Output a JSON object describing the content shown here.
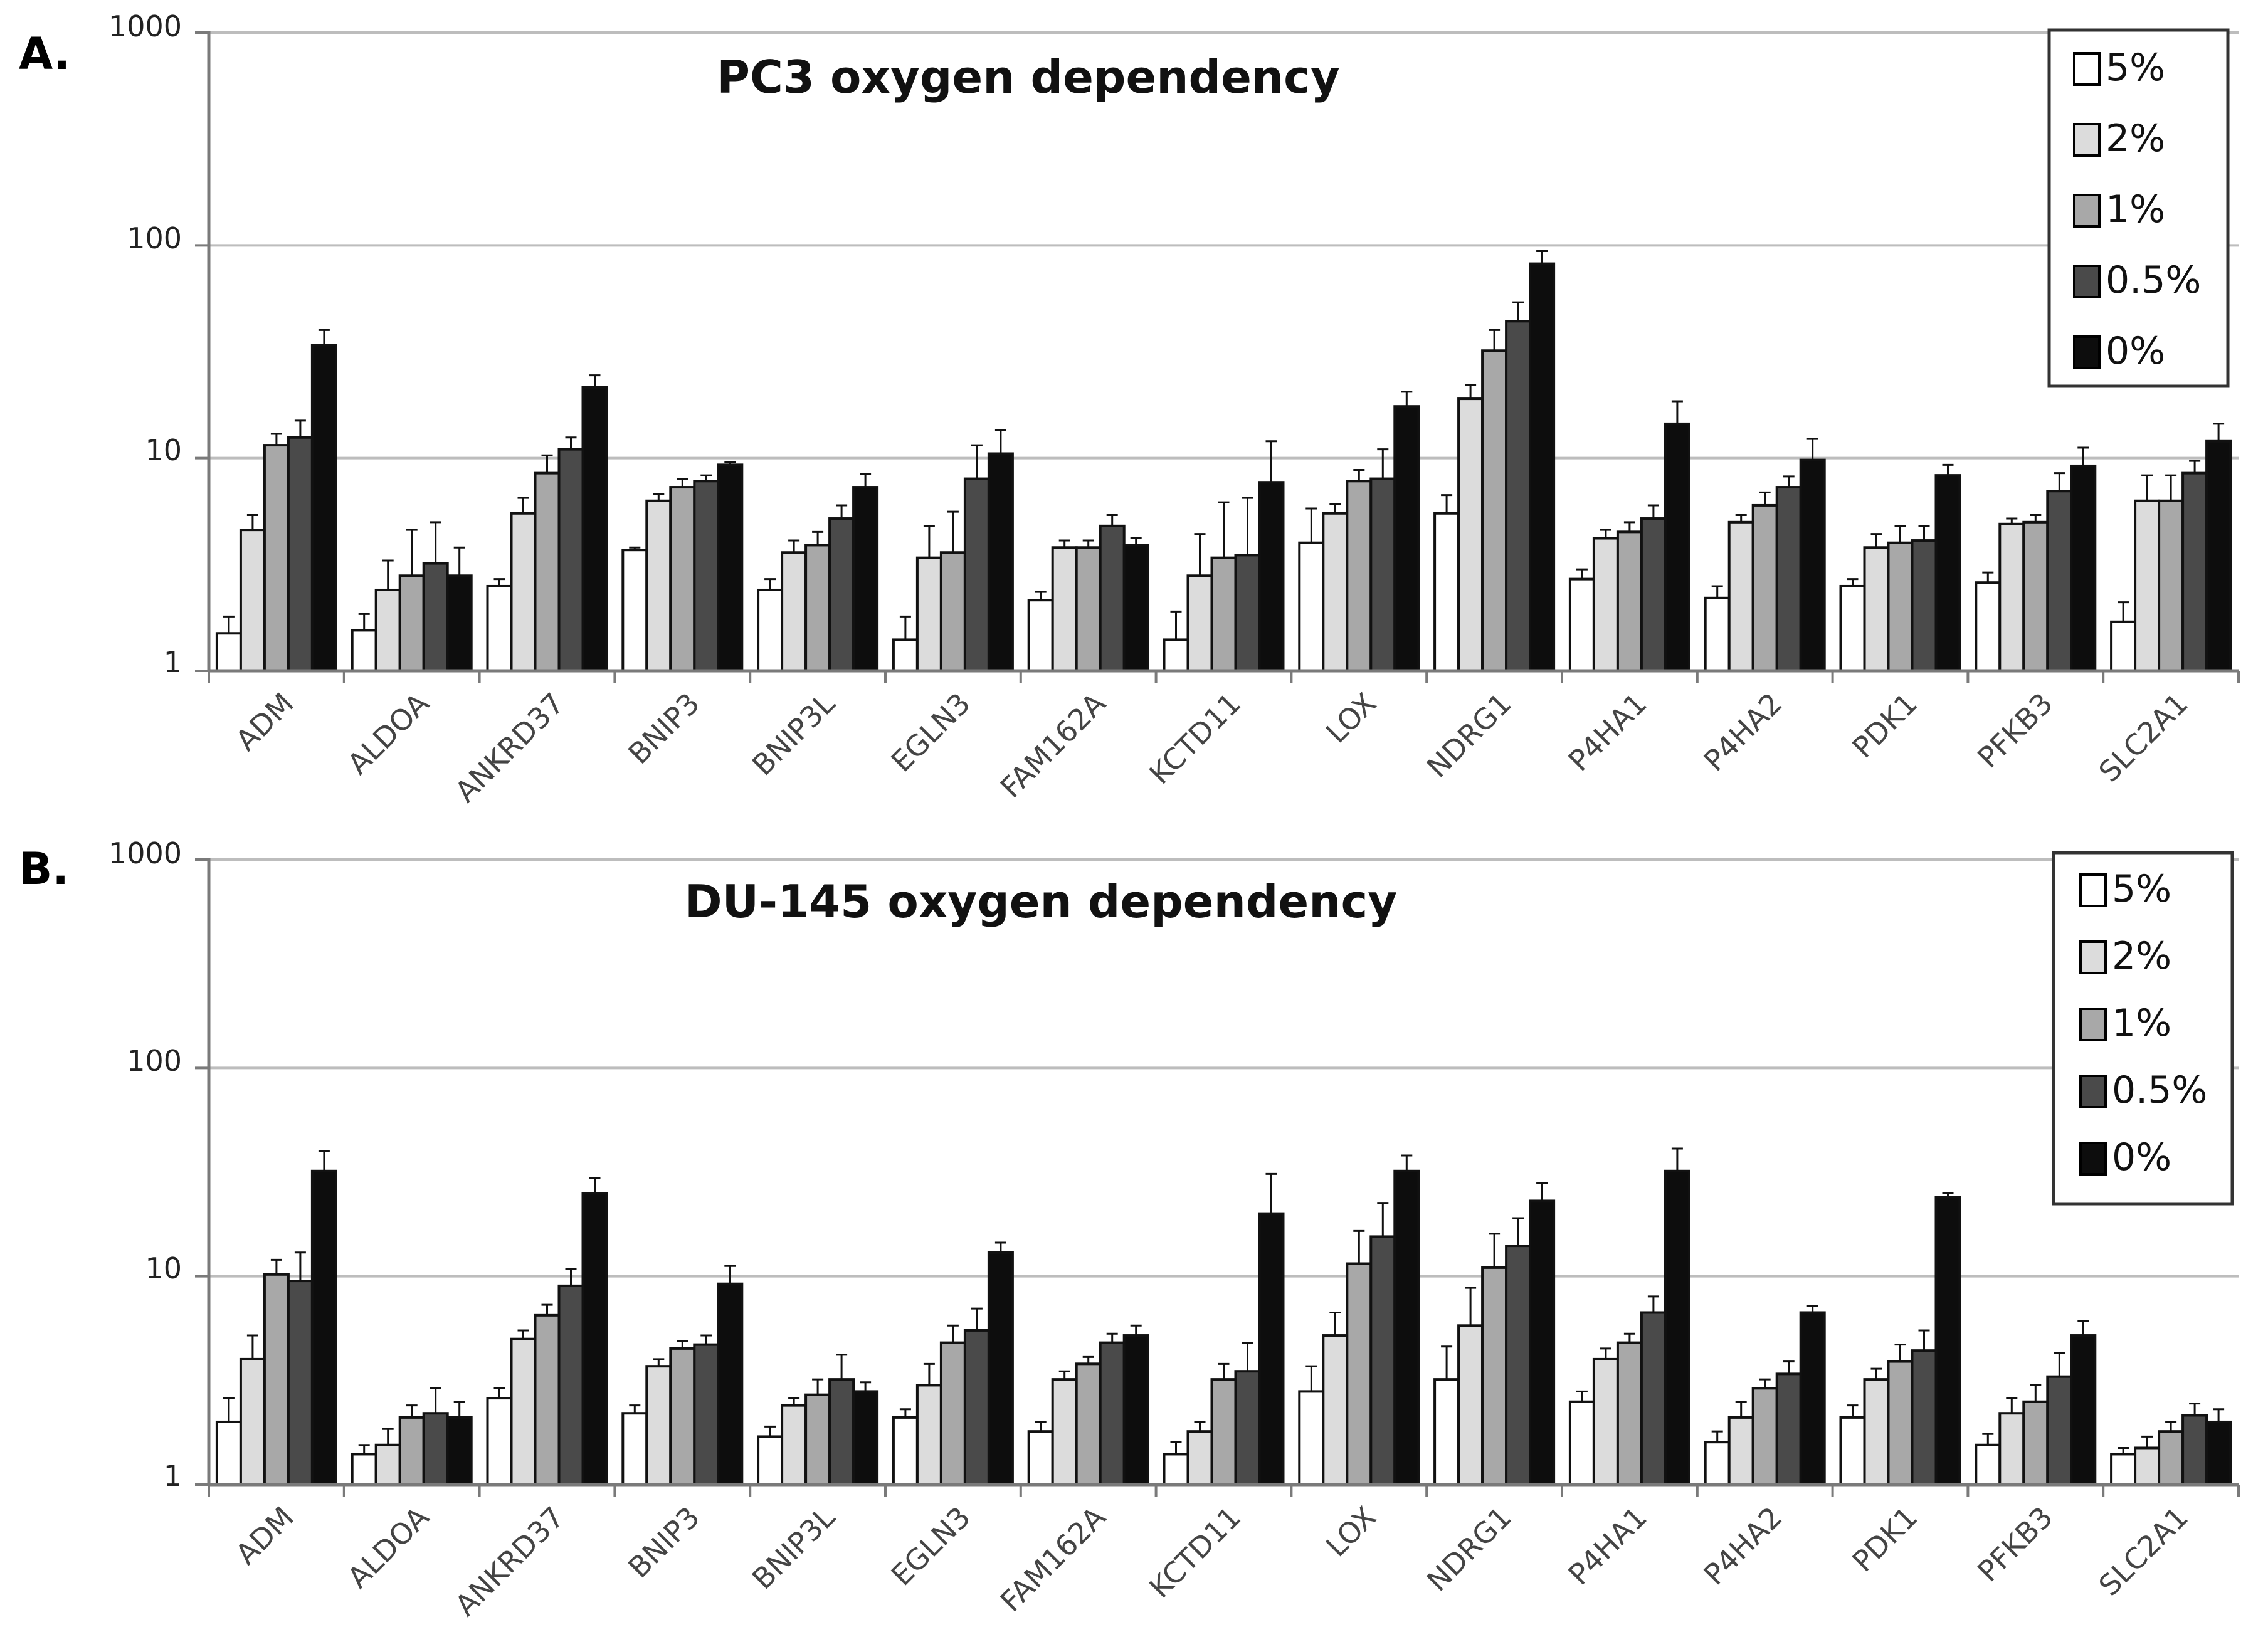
{
  "colors": {
    "background": "#ffffff",
    "axis": "#7a7a7a",
    "grid": "#bdbdbd",
    "series": [
      "#ffffff",
      "#dcdcdc",
      "#a8a8a8",
      "#4a4a4a",
      "#0d0d0d"
    ]
  },
  "chart_data": [
    {
      "type": "bar",
      "panel": "A.",
      "title": "PC3 oxygen dependency",
      "yscale": "log",
      "ylim": [
        1,
        1000
      ],
      "yticks": [
        "1",
        "10",
        "100",
        "1000"
      ],
      "legend_position": "top-right",
      "categories": [
        "ADM",
        "ALDOA",
        "ANKRD37",
        "BNIP3",
        "BNIP3L",
        "EGLN3",
        "FAM162A",
        "KCTD11",
        "LOX",
        "NDRG1",
        "P4HA1",
        "P4HA2",
        "PDK1",
        "PFKB3",
        "SLC2A1"
      ],
      "series": [
        {
          "name": "5%",
          "values": [
            1.5,
            1.55,
            2.5,
            3.7,
            2.4,
            1.4,
            2.15,
            1.4,
            4.0,
            5.5,
            2.7,
            2.2,
            2.5,
            2.6,
            1.7
          ],
          "errors": [
            0.3,
            0.3,
            0.2,
            0.1,
            0.3,
            0.4,
            0.2,
            0.5,
            1.8,
            1.2,
            0.3,
            0.3,
            0.2,
            0.3,
            0.4
          ]
        },
        {
          "name": "2%",
          "values": [
            4.6,
            2.4,
            5.5,
            6.3,
            3.6,
            3.4,
            3.8,
            2.8,
            5.5,
            19.0,
            4.2,
            5.0,
            3.8,
            4.9,
            6.3
          ],
          "errors": [
            0.8,
            0.9,
            1.0,
            0.5,
            0.5,
            1.4,
            0.3,
            1.6,
            0.6,
            3.0,
            0.4,
            0.4,
            0.6,
            0.3,
            2.0
          ]
        },
        {
          "name": "1%",
          "values": [
            11.5,
            2.8,
            8.5,
            7.3,
            3.9,
            3.6,
            3.8,
            3.4,
            7.8,
            32.0,
            4.5,
            6.0,
            4.0,
            5.0,
            6.3
          ],
          "errors": [
            1.5,
            1.8,
            1.8,
            0.7,
            0.6,
            2.0,
            0.3,
            2.8,
            1.0,
            8.0,
            0.5,
            0.9,
            0.8,
            0.4,
            2.0
          ]
        },
        {
          "name": "0.5%",
          "values": [
            12.5,
            3.2,
            11.0,
            7.8,
            5.2,
            8.0,
            4.8,
            3.5,
            8.0,
            44.0,
            5.2,
            7.3,
            4.1,
            7.0,
            8.5
          ],
          "errors": [
            2.5,
            1.8,
            1.5,
            0.5,
            0.8,
            3.5,
            0.6,
            3.0,
            3.0,
            10.0,
            0.8,
            0.9,
            0.7,
            1.5,
            1.2
          ]
        },
        {
          "name": "0%",
          "values": [
            34,
            2.8,
            21.5,
            9.3,
            7.3,
            10.5,
            3.9,
            7.7,
            17.5,
            82,
            14.5,
            9.8,
            8.3,
            9.2,
            12.0
          ],
          "errors": [
            6,
            1.0,
            3.0,
            0.3,
            1.1,
            3.0,
            0.3,
            4.3,
            3.0,
            12,
            4.0,
            2.5,
            1.0,
            2.0,
            2.5
          ]
        }
      ]
    },
    {
      "type": "bar",
      "panel": "B.",
      "title": "DU-145 oxygen dependency",
      "yscale": "log",
      "ylim": [
        1,
        1000
      ],
      "yticks": [
        "1",
        "10",
        "100",
        "1000"
      ],
      "legend_position": "top-right",
      "categories": [
        "ADM",
        "ALDOA",
        "ANKRD37",
        "BNIP3",
        "BNIP3L",
        "EGLN3",
        "FAM162A",
        "KCTD11",
        "LOX",
        "NDRG1",
        "P4HA1",
        "P4HA2",
        "PDK1",
        "PFKB3",
        "SLC2A1"
      ],
      "series": [
        {
          "name": "5%",
          "values": [
            2.0,
            1.4,
            2.6,
            2.2,
            1.7,
            2.1,
            1.8,
            1.4,
            2.8,
            3.2,
            2.5,
            1.6,
            2.1,
            1.55,
            1.4
          ],
          "errors": [
            0.6,
            0.15,
            0.3,
            0.2,
            0.2,
            0.2,
            0.2,
            0.2,
            0.9,
            1.4,
            0.3,
            0.2,
            0.3,
            0.2,
            0.1
          ]
        },
        {
          "name": "2%",
          "values": [
            4.0,
            1.55,
            5.0,
            3.7,
            2.4,
            3.0,
            3.2,
            1.8,
            5.2,
            5.8,
            4.0,
            2.1,
            3.2,
            2.2,
            1.5
          ],
          "errors": [
            1.2,
            0.3,
            0.5,
            0.3,
            0.2,
            0.8,
            0.3,
            0.2,
            1.5,
            3.0,
            0.5,
            0.4,
            0.4,
            0.4,
            0.2
          ]
        },
        {
          "name": "1%",
          "values": [
            10.2,
            2.1,
            6.5,
            4.5,
            2.7,
            4.8,
            3.8,
            3.2,
            11.5,
            11.0,
            4.8,
            2.9,
            3.9,
            2.5,
            1.8
          ],
          "errors": [
            1.8,
            0.3,
            0.8,
            0.4,
            0.5,
            1.0,
            0.3,
            0.6,
            5.0,
            5.0,
            0.5,
            0.3,
            0.8,
            0.5,
            0.2
          ]
        },
        {
          "name": "0.5%",
          "values": [
            9.5,
            2.2,
            9.0,
            4.7,
            3.2,
            5.5,
            4.8,
            3.5,
            15.5,
            14.0,
            6.7,
            3.4,
            4.4,
            3.3,
            2.15
          ],
          "errors": [
            3.5,
            0.7,
            1.8,
            0.5,
            1.0,
            1.5,
            0.5,
            1.3,
            7.0,
            5.0,
            1.3,
            0.5,
            1.1,
            1.0,
            0.3
          ]
        },
        {
          "name": "0%",
          "values": [
            32,
            2.1,
            25,
            9.2,
            2.8,
            13.0,
            5.2,
            20.0,
            32,
            23.0,
            32,
            6.7,
            24.0,
            5.2,
            2.0
          ],
          "errors": [
            8,
            0.4,
            4.5,
            2.0,
            0.3,
            1.5,
            0.6,
            11.0,
            6,
            5.0,
            9,
            0.5,
            1.0,
            0.9,
            0.3
          ]
        }
      ]
    }
  ]
}
